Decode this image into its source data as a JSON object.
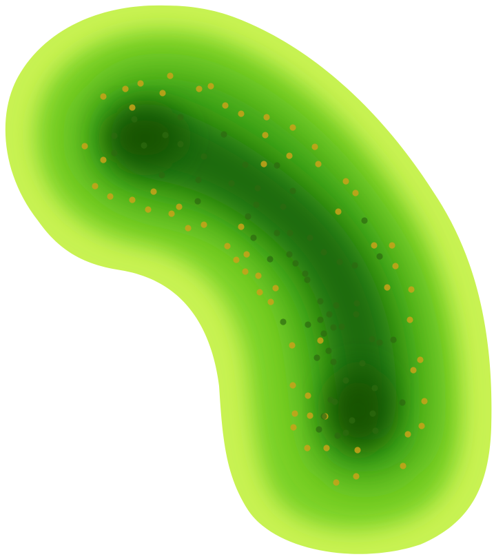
{
  "scene": {
    "subject": "pickle-like-shape",
    "background_color": "#ffffff",
    "colors": {
      "edge": "#c4f050",
      "body": "#4fb318",
      "shadow": "#165c05",
      "dots_outer": "#c9a21a",
      "dots_inner": "#2e6a10"
    }
  }
}
